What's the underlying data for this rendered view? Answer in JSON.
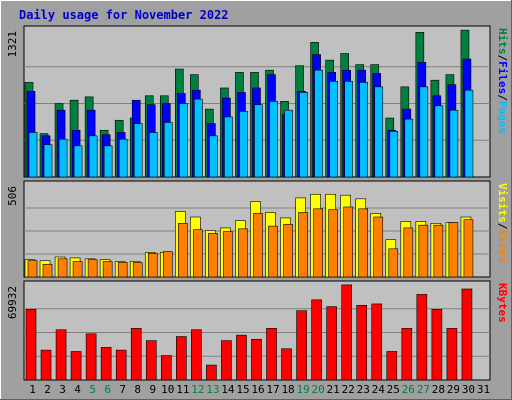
{
  "chart_data": {
    "type": "bar",
    "title": "Daily usage for November 2022",
    "categories": [
      "1",
      "2",
      "3",
      "4",
      "5",
      "6",
      "7",
      "8",
      "9",
      "10",
      "11",
      "12",
      "13",
      "14",
      "15",
      "16",
      "17",
      "18",
      "19",
      "20",
      "21",
      "22",
      "23",
      "24",
      "25",
      "26",
      "27",
      "28",
      "29",
      "30",
      "31"
    ],
    "weekend_days": [
      5,
      6,
      12,
      13,
      19,
      20,
      26,
      27
    ],
    "colors": {
      "frame": "#a0a0a0",
      "plot_bg": "#c0c0c0",
      "gridline": "#808080",
      "hits": "#008040",
      "files": "#0000ff",
      "pages": "#00c0ff",
      "visits": "#ffff00",
      "sites": "#ff8000",
      "kbytes": "#ff0000",
      "title": "#0000cc",
      "weekday_label": "#000000",
      "weekend_label": "#008040"
    },
    "panels": [
      {
        "ymax_label": "1321",
        "ylim": [
          0,
          1321
        ],
        "legend": [
          {
            "text": "Hits",
            "color": "#008040"
          },
          {
            "text": "/",
            "color": "#000000"
          },
          {
            "text": "Files",
            "color": "#0000ff"
          },
          {
            "text": "/",
            "color": "#000000"
          },
          {
            "text": "Pages",
            "color": "#00c0ff"
          }
        ],
        "series": [
          {
            "name": "Hits",
            "color": "#008040",
            "values": [
              850,
              390,
              660,
              690,
              720,
              420,
              510,
              530,
              730,
              730,
              970,
              920,
              610,
              800,
              940,
              940,
              960,
              680,
              1000,
              1210,
              1050,
              1110,
              1010,
              1010,
              530,
              810,
              1300,
              870,
              920,
              1320,
              0
            ]
          },
          {
            "name": "Files",
            "color": "#0000ff",
            "values": [
              770,
              370,
              600,
              420,
              600,
              380,
              400,
              690,
              650,
              660,
              750,
              780,
              480,
              710,
              760,
              800,
              920,
              560,
              770,
              1100,
              940,
              960,
              960,
              930,
              420,
              610,
              1030,
              730,
              830,
              1060,
              0
            ]
          },
          {
            "name": "Pages",
            "color": "#00c0ff",
            "values": [
              400,
              290,
              340,
              280,
              370,
              280,
              340,
              480,
              400,
              490,
              660,
              700,
              370,
              540,
              590,
              650,
              680,
              600,
              760,
              960,
              860,
              860,
              850,
              810,
              410,
              520,
              810,
              640,
              600,
              780,
              0
            ]
          }
        ]
      },
      {
        "ymax_label": "506",
        "ylim": [
          0,
          506
        ],
        "legend": [
          {
            "text": "Visits",
            "color": "#ffff00"
          },
          {
            "text": "/",
            "color": "#000000"
          },
          {
            "text": "Sites",
            "color": "#ff8000"
          }
        ],
        "series": [
          {
            "name": "Visits",
            "color": "#ffff00",
            "values": [
              95,
              90,
              110,
              105,
              100,
              95,
              85,
              85,
              135,
              135,
              360,
              330,
              255,
              270,
              310,
              415,
              355,
              325,
              435,
              455,
              455,
              450,
              430,
              350,
              205,
              305,
              305,
              295,
              300,
              330,
              0
            ]
          },
          {
            "name": "Sites",
            "color": "#ff8000",
            "values": [
              90,
              70,
              100,
              85,
              95,
              85,
              80,
              80,
              130,
              140,
              295,
              260,
              240,
              250,
              265,
              350,
              280,
              290,
              355,
              375,
              370,
              385,
              375,
              330,
              155,
              270,
              285,
              285,
              300,
              315,
              0
            ]
          }
        ]
      },
      {
        "ymax_label": "69932",
        "ylim": [
          0,
          69932
        ],
        "legend": [
          {
            "text": "KBytes",
            "color": "#ff0000"
          }
        ],
        "series": [
          {
            "name": "KBytes",
            "color": "#ff0000",
            "values": [
              52000,
              22000,
              37000,
              21000,
              34000,
              24000,
              22000,
              38000,
              29000,
              18000,
              32000,
              37000,
              11000,
              29000,
              33000,
              30000,
              38000,
              23000,
              51000,
              59000,
              54000,
              70000,
              55000,
              56000,
              21000,
              38000,
              63000,
              52000,
              38000,
              67000,
              0
            ]
          }
        ]
      }
    ]
  }
}
